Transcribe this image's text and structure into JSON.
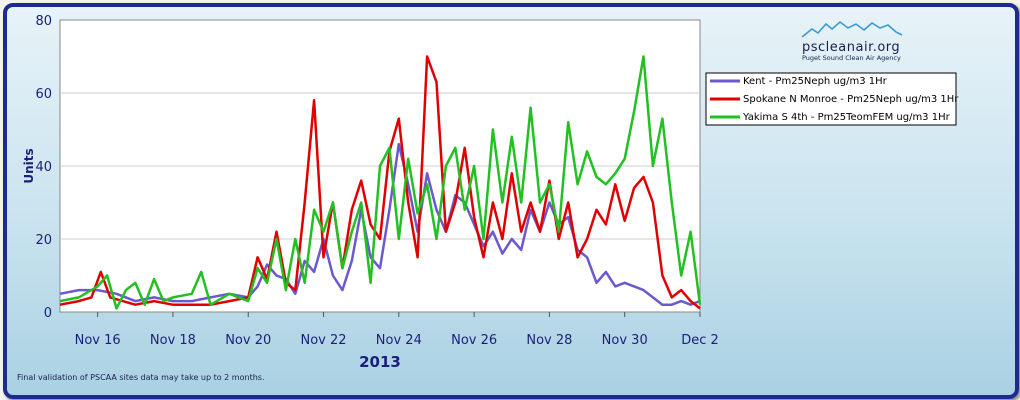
{
  "chart_data": {
    "type": "line",
    "title": "",
    "xlabel": "",
    "ylabel": "Units",
    "year_label": "2013",
    "ylim": [
      0,
      80
    ],
    "yticks": [
      "0",
      "20",
      "40",
      "60",
      "80"
    ],
    "x_range": [
      "2013-11-15",
      "2013-12-02"
    ],
    "xticks": [
      "Nov 16",
      "Nov 18",
      "Nov 20",
      "Nov 22",
      "Nov 24",
      "Nov 26",
      "Nov 28",
      "Nov 30",
      "Dec 2"
    ],
    "xtick_dates": [
      "2013-11-16",
      "2013-11-18",
      "2013-11-20",
      "2013-11-22",
      "2013-11-24",
      "2013-11-26",
      "2013-11-28",
      "2013-11-30",
      "2013-12-02"
    ],
    "grid": "horizontal",
    "legend_position": "top-right",
    "series": [
      {
        "name": "Kent - Pm25Neph  ug/m3  1Hr",
        "color": "#6a5acd",
        "points": [
          [
            "2013-11-15 00:00",
            5
          ],
          [
            "2013-11-15 12:00",
            6
          ],
          [
            "2013-11-16 00:00",
            6
          ],
          [
            "2013-11-16 12:00",
            5
          ],
          [
            "2013-11-17 00:00",
            3
          ],
          [
            "2013-11-17 12:00",
            4
          ],
          [
            "2013-11-18 00:00",
            3
          ],
          [
            "2013-11-18 12:00",
            3
          ],
          [
            "2013-11-19 00:00",
            4
          ],
          [
            "2013-11-19 12:00",
            5
          ],
          [
            "2013-11-20 00:00",
            4
          ],
          [
            "2013-11-20 06:00",
            7
          ],
          [
            "2013-11-20 12:00",
            13
          ],
          [
            "2013-11-20 18:00",
            10
          ],
          [
            "2013-11-21 00:00",
            9
          ],
          [
            "2013-11-21 06:00",
            5
          ],
          [
            "2013-11-21 12:00",
            14
          ],
          [
            "2013-11-21 18:00",
            11
          ],
          [
            "2013-11-22 00:00",
            20
          ],
          [
            "2013-11-22 06:00",
            10
          ],
          [
            "2013-11-22 12:00",
            6
          ],
          [
            "2013-11-22 18:00",
            14
          ],
          [
            "2013-11-23 00:00",
            28
          ],
          [
            "2013-11-23 06:00",
            15
          ],
          [
            "2013-11-23 12:00",
            12
          ],
          [
            "2013-11-23 18:00",
            28
          ],
          [
            "2013-11-24 00:00",
            46
          ],
          [
            "2013-11-24 06:00",
            35
          ],
          [
            "2013-11-24 12:00",
            22
          ],
          [
            "2013-11-24 18:00",
            38
          ],
          [
            "2013-11-25 00:00",
            28
          ],
          [
            "2013-11-25 06:00",
            22
          ],
          [
            "2013-11-25 12:00",
            32
          ],
          [
            "2013-11-25 18:00",
            30
          ],
          [
            "2013-11-26 00:00",
            24
          ],
          [
            "2013-11-26 06:00",
            18
          ],
          [
            "2013-11-26 12:00",
            22
          ],
          [
            "2013-11-26 18:00",
            16
          ],
          [
            "2013-11-27 00:00",
            20
          ],
          [
            "2013-11-27 06:00",
            17
          ],
          [
            "2013-11-27 12:00",
            28
          ],
          [
            "2013-11-27 18:00",
            22
          ],
          [
            "2013-11-28 00:00",
            30
          ],
          [
            "2013-11-28 06:00",
            24
          ],
          [
            "2013-11-28 12:00",
            26
          ],
          [
            "2013-11-28 18:00",
            17
          ],
          [
            "2013-11-29 00:00",
            15
          ],
          [
            "2013-11-29 06:00",
            8
          ],
          [
            "2013-11-29 12:00",
            11
          ],
          [
            "2013-11-29 18:00",
            7
          ],
          [
            "2013-11-30 00:00",
            8
          ],
          [
            "2013-11-30 06:00",
            7
          ],
          [
            "2013-11-30 12:00",
            6
          ],
          [
            "2013-11-30 18:00",
            4
          ],
          [
            "2013-12-01 00:00",
            2
          ],
          [
            "2013-12-01 06:00",
            2
          ],
          [
            "2013-12-01 12:00",
            3
          ],
          [
            "2013-12-01 18:00",
            2
          ],
          [
            "2013-12-02 00:00",
            3
          ]
        ]
      },
      {
        "name": "Spokane N Monroe - Pm25Neph  ug/m3  1Hr",
        "color": "#e00000",
        "points": [
          [
            "2013-11-15 00:00",
            2
          ],
          [
            "2013-11-15 12:00",
            3
          ],
          [
            "2013-11-15 20:00",
            4
          ],
          [
            "2013-11-16 02:00",
            11
          ],
          [
            "2013-11-16 08:00",
            4
          ],
          [
            "2013-11-16 16:00",
            3
          ],
          [
            "2013-11-17 00:00",
            2
          ],
          [
            "2013-11-17 12:00",
            3
          ],
          [
            "2013-11-18 00:00",
            2
          ],
          [
            "2013-11-18 12:00",
            2
          ],
          [
            "2013-11-19 00:00",
            2
          ],
          [
            "2013-11-19 12:00",
            3
          ],
          [
            "2013-11-20 00:00",
            4
          ],
          [
            "2013-11-20 06:00",
            15
          ],
          [
            "2013-11-20 12:00",
            9
          ],
          [
            "2013-11-20 18:00",
            22
          ],
          [
            "2013-11-21 00:00",
            8
          ],
          [
            "2013-11-21 06:00",
            6
          ],
          [
            "2013-11-21 12:00",
            30
          ],
          [
            "2013-11-21 18:00",
            58
          ],
          [
            "2013-11-22 00:00",
            15
          ],
          [
            "2013-11-22 06:00",
            30
          ],
          [
            "2013-11-22 12:00",
            12
          ],
          [
            "2013-11-22 18:00",
            28
          ],
          [
            "2013-11-23 00:00",
            36
          ],
          [
            "2013-11-23 06:00",
            24
          ],
          [
            "2013-11-23 12:00",
            20
          ],
          [
            "2013-11-23 18:00",
            44
          ],
          [
            "2013-11-24 00:00",
            53
          ],
          [
            "2013-11-24 06:00",
            30
          ],
          [
            "2013-11-24 12:00",
            15
          ],
          [
            "2013-11-24 18:00",
            70
          ],
          [
            "2013-11-25 00:00",
            63
          ],
          [
            "2013-11-25 06:00",
            22
          ],
          [
            "2013-11-25 12:00",
            30
          ],
          [
            "2013-11-25 18:00",
            45
          ],
          [
            "2013-11-26 00:00",
            26
          ],
          [
            "2013-11-26 06:00",
            15
          ],
          [
            "2013-11-26 12:00",
            30
          ],
          [
            "2013-11-26 18:00",
            20
          ],
          [
            "2013-11-27 00:00",
            38
          ],
          [
            "2013-11-27 06:00",
            22
          ],
          [
            "2013-11-27 12:00",
            30
          ],
          [
            "2013-11-27 18:00",
            22
          ],
          [
            "2013-11-28 00:00",
            36
          ],
          [
            "2013-11-28 06:00",
            20
          ],
          [
            "2013-11-28 12:00",
            30
          ],
          [
            "2013-11-28 18:00",
            15
          ],
          [
            "2013-11-29 00:00",
            20
          ],
          [
            "2013-11-29 06:00",
            28
          ],
          [
            "2013-11-29 12:00",
            24
          ],
          [
            "2013-11-29 18:00",
            35
          ],
          [
            "2013-11-30 00:00",
            25
          ],
          [
            "2013-11-30 06:00",
            34
          ],
          [
            "2013-11-30 12:00",
            37
          ],
          [
            "2013-11-30 18:00",
            30
          ],
          [
            "2013-12-01 00:00",
            10
          ],
          [
            "2013-12-01 06:00",
            4
          ],
          [
            "2013-12-01 12:00",
            6
          ],
          [
            "2013-12-01 18:00",
            3
          ],
          [
            "2013-12-02 00:00",
            1
          ]
        ]
      },
      {
        "name": "Yakima S 4th - Pm25TeomFEM  ug/m3  1Hr",
        "color": "#22c022",
        "points": [
          [
            "2013-11-15 00:00",
            3
          ],
          [
            "2013-11-15 12:00",
            4
          ],
          [
            "2013-11-16 00:00",
            7
          ],
          [
            "2013-11-16 06:00",
            10
          ],
          [
            "2013-11-16 12:00",
            1
          ],
          [
            "2013-11-16 18:00",
            6
          ],
          [
            "2013-11-17 00:00",
            8
          ],
          [
            "2013-11-17 06:00",
            2
          ],
          [
            "2013-11-17 12:00",
            9
          ],
          [
            "2013-11-17 18:00",
            3
          ],
          [
            "2013-11-18 00:00",
            4
          ],
          [
            "2013-11-18 12:00",
            5
          ],
          [
            "2013-11-18 18:00",
            11
          ],
          [
            "2013-11-19 00:00",
            2
          ],
          [
            "2013-11-19 12:00",
            5
          ],
          [
            "2013-11-20 00:00",
            3
          ],
          [
            "2013-11-20 06:00",
            12
          ],
          [
            "2013-11-20 12:00",
            8
          ],
          [
            "2013-11-20 18:00",
            20
          ],
          [
            "2013-11-21 00:00",
            6
          ],
          [
            "2013-11-21 06:00",
            20
          ],
          [
            "2013-11-21 12:00",
            8
          ],
          [
            "2013-11-21 18:00",
            28
          ],
          [
            "2013-11-22 00:00",
            22
          ],
          [
            "2013-11-22 06:00",
            30
          ],
          [
            "2013-11-22 12:00",
            12
          ],
          [
            "2013-11-22 18:00",
            22
          ],
          [
            "2013-11-23 00:00",
            30
          ],
          [
            "2013-11-23 06:00",
            8
          ],
          [
            "2013-11-23 12:00",
            40
          ],
          [
            "2013-11-23 18:00",
            45
          ],
          [
            "2013-11-24 00:00",
            20
          ],
          [
            "2013-11-24 06:00",
            42
          ],
          [
            "2013-11-24 12:00",
            27
          ],
          [
            "2013-11-24 18:00",
            35
          ],
          [
            "2013-11-25 00:00",
            20
          ],
          [
            "2013-11-25 06:00",
            40
          ],
          [
            "2013-11-25 12:00",
            45
          ],
          [
            "2013-11-25 18:00",
            28
          ],
          [
            "2013-11-26 00:00",
            40
          ],
          [
            "2013-11-26 06:00",
            20
          ],
          [
            "2013-11-26 12:00",
            50
          ],
          [
            "2013-11-26 18:00",
            30
          ],
          [
            "2013-11-27 00:00",
            48
          ],
          [
            "2013-11-27 06:00",
            30
          ],
          [
            "2013-11-27 12:00",
            56
          ],
          [
            "2013-11-27 18:00",
            30
          ],
          [
            "2013-11-28 00:00",
            35
          ],
          [
            "2013-11-28 06:00",
            22
          ],
          [
            "2013-11-28 12:00",
            52
          ],
          [
            "2013-11-28 18:00",
            35
          ],
          [
            "2013-11-29 00:00",
            44
          ],
          [
            "2013-11-29 06:00",
            37
          ],
          [
            "2013-11-29 12:00",
            35
          ],
          [
            "2013-11-29 18:00",
            38
          ],
          [
            "2013-11-30 00:00",
            42
          ],
          [
            "2013-11-30 06:00",
            55
          ],
          [
            "2013-11-30 12:00",
            70
          ],
          [
            "2013-11-30 18:00",
            40
          ],
          [
            "2013-12-01 00:00",
            53
          ],
          [
            "2013-12-01 06:00",
            30
          ],
          [
            "2013-12-01 12:00",
            10
          ],
          [
            "2013-12-01 18:00",
            22
          ],
          [
            "2013-12-02 00:00",
            2
          ]
        ]
      }
    ]
  },
  "logo": {
    "name": "pscleanair.org",
    "tagline": "Puget Sound Clean Air Agency"
  },
  "footnote": "Final validation of PSCAA sites data may take up to 2 months."
}
